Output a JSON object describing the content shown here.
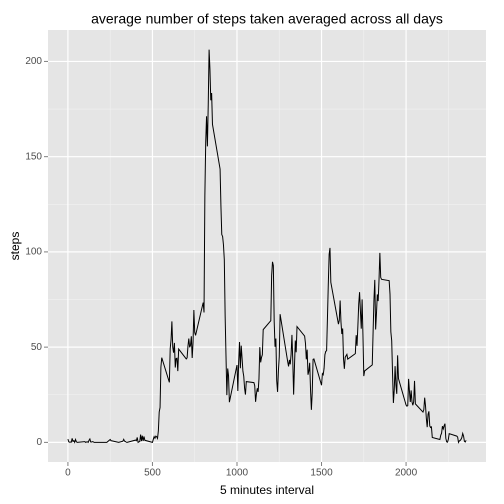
{
  "chart_data": {
    "type": "line",
    "title": "average number of steps taken averaged across all days",
    "xlabel": "5 minutes interval",
    "ylabel": "steps",
    "color": "#000000",
    "grid": true,
    "xlim": [
      -117.75,
      2472.75
    ],
    "ylim": [
      -10.3,
      216.5
    ],
    "xticks": [
      0,
      500,
      1000,
      1500,
      2000
    ],
    "yticks": [
      0,
      50,
      100,
      150,
      200
    ],
    "xminorticks": [
      250,
      750,
      1250,
      1750,
      2250
    ],
    "yminorticks": [
      25,
      75,
      125,
      175
    ],
    "x": [
      0,
      5,
      10,
      15,
      20,
      25,
      30,
      35,
      40,
      45,
      50,
      55,
      100,
      105,
      110,
      115,
      120,
      125,
      130,
      135,
      140,
      145,
      150,
      155,
      200,
      230,
      250,
      255,
      300,
      325,
      330,
      335,
      340,
      345,
      350,
      400,
      405,
      410,
      415,
      420,
      425,
      430,
      435,
      440,
      445,
      450,
      455,
      500,
      505,
      510,
      515,
      520,
      525,
      530,
      535,
      540,
      545,
      550,
      555,
      600,
      605,
      610,
      615,
      620,
      625,
      630,
      635,
      640,
      645,
      650,
      655,
      700,
      705,
      710,
      715,
      720,
      725,
      730,
      735,
      740,
      745,
      750,
      755,
      800,
      805,
      810,
      815,
      820,
      825,
      830,
      835,
      840,
      845,
      850,
      855,
      900,
      905,
      910,
      915,
      920,
      925,
      930,
      935,
      940,
      945,
      950,
      955,
      1000,
      1005,
      1010,
      1015,
      1020,
      1025,
      1030,
      1035,
      1040,
      1045,
      1050,
      1055,
      1100,
      1105,
      1110,
      1115,
      1120,
      1125,
      1130,
      1135,
      1140,
      1145,
      1150,
      1155,
      1200,
      1205,
      1210,
      1215,
      1220,
      1225,
      1230,
      1235,
      1240,
      1245,
      1250,
      1255,
      1300,
      1305,
      1310,
      1315,
      1320,
      1325,
      1330,
      1335,
      1340,
      1345,
      1350,
      1355,
      1400,
      1405,
      1410,
      1415,
      1420,
      1425,
      1430,
      1435,
      1440,
      1445,
      1450,
      1455,
      1500,
      1505,
      1510,
      1515,
      1520,
      1525,
      1530,
      1535,
      1540,
      1545,
      1550,
      1555,
      1600,
      1605,
      1610,
      1615,
      1620,
      1625,
      1630,
      1635,
      1640,
      1645,
      1650,
      1655,
      1700,
      1705,
      1710,
      1715,
      1720,
      1725,
      1730,
      1735,
      1740,
      1745,
      1750,
      1755,
      1800,
      1805,
      1810,
      1815,
      1820,
      1825,
      1830,
      1835,
      1840,
      1845,
      1850,
      1855,
      1900,
      1905,
      1910,
      1915,
      1920,
      1925,
      1930,
      1935,
      1940,
      1945,
      1950,
      1955,
      2000,
      2005,
      2010,
      2015,
      2020,
      2025,
      2030,
      2035,
      2040,
      2045,
      2050,
      2055,
      2100,
      2105,
      2110,
      2115,
      2120,
      2125,
      2130,
      2135,
      2140,
      2145,
      2150,
      2155,
      2200,
      2205,
      2210,
      2215,
      2220,
      2225,
      2230,
      2235,
      2240,
      2245,
      2250,
      2255,
      2300,
      2305,
      2310,
      2315,
      2320,
      2325,
      2330,
      2335,
      2340,
      2345,
      2350,
      2355
    ],
    "values": [
      1.7,
      0.3,
      0.1,
      0.2,
      0.1,
      2.1,
      0.5,
      0.9,
      0,
      1.5,
      0.3,
      0,
      0.4,
      0,
      0.2,
      0.3,
      0,
      1.1,
      1.8,
      0.2,
      0.2,
      0.4,
      0.3,
      0,
      0,
      0,
      1.5,
      0.9,
      0,
      0.6,
      1.6,
      0.6,
      0.5,
      0.1,
      0,
      1.2,
      0.9,
      2.6,
      0,
      0.3,
      0.4,
      4.1,
      0.7,
      3.5,
      0.8,
      3.1,
      1.1,
      0,
      1.6,
      3,
      2.2,
      3.3,
      3,
      2.1,
      6.1,
      16,
      18.3,
      39.5,
      44.5,
      31.5,
      49.3,
      53.8,
      63.5,
      50,
      47.1,
      52.2,
      39.3,
      44,
      44.2,
      37.4,
      49,
      43.8,
      44.4,
      50.5,
      54.5,
      49.9,
      51,
      55.7,
      44.3,
      52.3,
      69.5,
      57.8,
      56.2,
      73.4,
      68.2,
      129.4,
      157.5,
      171.2,
      155.4,
      177.3,
      206.2,
      195.9,
      179.6,
      183.4,
      167,
      143.5,
      124,
      109.1,
      108.1,
      103.7,
      95.9,
      66.2,
      45.2,
      24.8,
      38.8,
      35,
      21.1,
      40.6,
      27,
      42.4,
      52.7,
      38.9,
      50.8,
      44.3,
      37.4,
      34.7,
      28.3,
      25.1,
      31.9,
      31.4,
      29.7,
      21.3,
      25.5,
      28.4,
      26.5,
      33.4,
      50,
      42,
      44.6,
      46,
      59.2,
      63.9,
      87.7,
      94.8,
      92.8,
      63.4,
      50.2,
      54.5,
      32.4,
      26.5,
      37.7,
      45,
      67.3,
      42.3,
      39.9,
      43.3,
      41,
      46.2,
      56.4,
      42.8,
      25.1,
      40,
      53.5,
      47.3,
      60.8,
      55.8,
      52,
      43.6,
      48.7,
      35.5,
      37.5,
      41.8,
      27.5,
      17.1,
      26.1,
      43.6,
      43.8,
      30,
      36.1,
      35.5,
      38.8,
      46,
      47.8,
      48.1,
      65.3,
      82.9,
      98.7,
      102.1,
      84,
      62.1,
      64.1,
      74.5,
      63.2,
      56.9,
      59.8,
      43.9,
      38.6,
      44.7,
      45.5,
      46.2,
      43.7,
      46.6,
      56.3,
      50.7,
      61.2,
      72.7,
      78.9,
      68.9,
      59.7,
      75.1,
      56.5,
      34.8,
      37.5,
      40.7,
      58,
      74.7,
      85.3,
      59.3,
      67.8,
      77.7,
      74.2,
      85.3,
      99.5,
      86.6,
      85.6,
      84.9,
      77.8,
      58,
      53.4,
      36.3,
      20.7,
      27.4,
      40,
      30.2,
      25.5,
      45.7,
      33.5,
      19.6,
      19,
      19.3,
      33.3,
      26.8,
      21.2,
      27.3,
      21.3,
      19.5,
      21.3,
      32.3,
      20.2,
      15.9,
      17.2,
      23.5,
      19.2,
      12.5,
      8,
      14.7,
      16.3,
      8.7,
      7.8,
      8.1,
      2.6,
      1.5,
      3.7,
      4.8,
      8.5,
      7.1,
      8.7,
      9.8,
      2.2,
      0.3,
      0.1,
      1.6,
      4.6,
      3.3,
      2.8,
      0,
      0.8,
      1,
      1.6,
      2.6,
      4.7,
      3.3,
      0.6,
      0.2,
      1.1
    ]
  }
}
